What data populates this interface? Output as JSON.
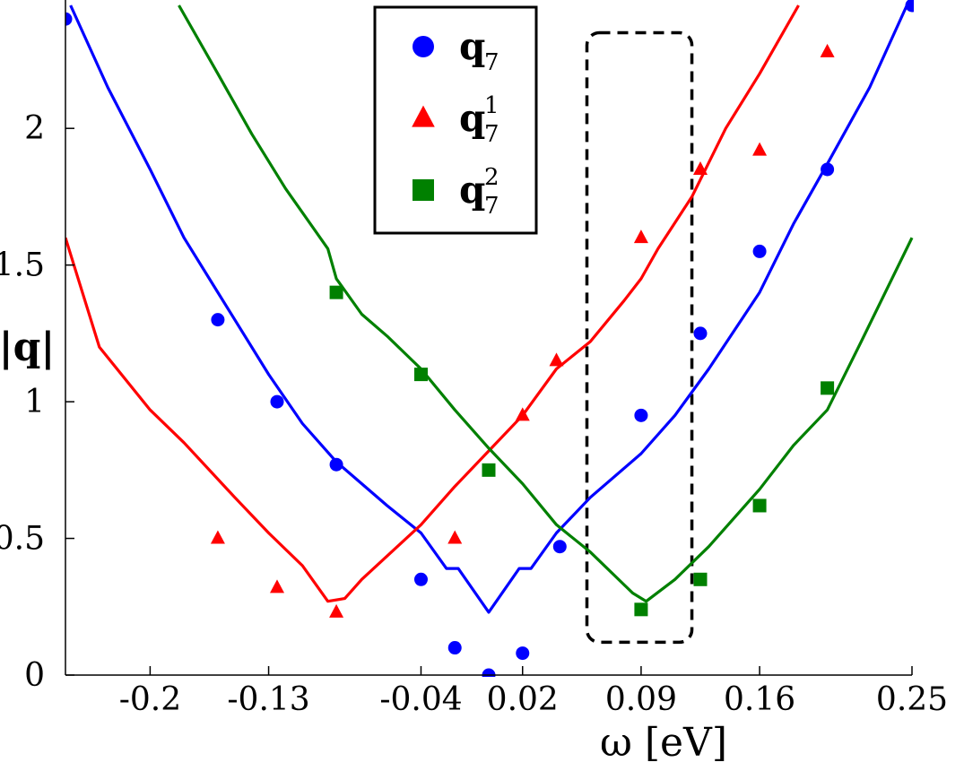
{
  "chart_data": {
    "type": "line",
    "xlabel": "ω [eV]",
    "ylabel": "|q|",
    "xlim": [
      -0.25,
      0.25
    ],
    "ylim": [
      0,
      2.45
    ],
    "x_ticks": [
      {
        "value": -0.2,
        "label": "-0.2"
      },
      {
        "value": -0.13,
        "label": "-0.13"
      },
      {
        "value": -0.04,
        "label": "-0.04"
      },
      {
        "value": 0.02,
        "label": "0.02"
      },
      {
        "value": 0.09,
        "label": "0.09"
      },
      {
        "value": 0.16,
        "label": "0.16"
      },
      {
        "value": 0.25,
        "label": "0.25"
      }
    ],
    "y_ticks": [
      {
        "value": 0,
        "label": "0"
      },
      {
        "value": 0.5,
        "label": "0.5"
      },
      {
        "value": 1,
        "label": "1"
      },
      {
        "value": 1.5,
        "label": "1.5"
      },
      {
        "value": 2,
        "label": "2"
      }
    ],
    "grid": false,
    "legend_position": "top-center",
    "series": [
      {
        "name": "q",
        "name_sub": "7",
        "name_sup": "",
        "color": "#0000ff",
        "marker": "circle",
        "points": [
          {
            "x": -0.25,
            "y": 2.4
          },
          {
            "x": -0.16,
            "y": 1.3
          },
          {
            "x": -0.125,
            "y": 1.0
          },
          {
            "x": -0.09,
            "y": 0.77
          },
          {
            "x": -0.04,
            "y": 0.35
          },
          {
            "x": -0.02,
            "y": 0.1
          },
          {
            "x": 0.0,
            "y": 0.0
          },
          {
            "x": 0.02,
            "y": 0.08
          },
          {
            "x": 0.042,
            "y": 0.47
          },
          {
            "x": 0.09,
            "y": 0.95
          },
          {
            "x": 0.125,
            "y": 1.25
          },
          {
            "x": 0.16,
            "y": 1.55
          },
          {
            "x": 0.2,
            "y": 1.85
          },
          {
            "x": 0.25,
            "y": 2.45
          }
        ],
        "curve": [
          {
            "x": -0.247,
            "y": 2.45
          },
          {
            "x": -0.225,
            "y": 2.15
          },
          {
            "x": -0.2,
            "y": 1.85
          },
          {
            "x": -0.18,
            "y": 1.6
          },
          {
            "x": -0.16,
            "y": 1.4
          },
          {
            "x": -0.13,
            "y": 1.1
          },
          {
            "x": -0.11,
            "y": 0.92
          },
          {
            "x": -0.09,
            "y": 0.78
          },
          {
            "x": -0.06,
            "y": 0.62
          },
          {
            "x": -0.04,
            "y": 0.52
          },
          {
            "x": -0.025,
            "y": 0.39
          },
          {
            "x": -0.018,
            "y": 0.39
          },
          {
            "x": 0.0,
            "y": 0.23
          },
          {
            "x": 0.018,
            "y": 0.39
          },
          {
            "x": 0.025,
            "y": 0.39
          },
          {
            "x": 0.04,
            "y": 0.52
          },
          {
            "x": 0.06,
            "y": 0.65
          },
          {
            "x": 0.09,
            "y": 0.81
          },
          {
            "x": 0.11,
            "y": 0.95
          },
          {
            "x": 0.13,
            "y": 1.12
          },
          {
            "x": 0.16,
            "y": 1.4
          },
          {
            "x": 0.18,
            "y": 1.65
          },
          {
            "x": 0.2,
            "y": 1.87
          },
          {
            "x": 0.225,
            "y": 2.15
          },
          {
            "x": 0.247,
            "y": 2.45
          }
        ]
      },
      {
        "name": "q",
        "name_sub": "7",
        "name_sup": "1",
        "color": "#ff0000",
        "marker": "triangle",
        "points": [
          {
            "x": -0.16,
            "y": 0.5
          },
          {
            "x": -0.125,
            "y": 0.32
          },
          {
            "x": -0.09,
            "y": 0.23
          },
          {
            "x": -0.02,
            "y": 0.5
          },
          {
            "x": 0.02,
            "y": 0.95
          },
          {
            "x": 0.04,
            "y": 1.15
          },
          {
            "x": 0.09,
            "y": 1.6
          },
          {
            "x": 0.125,
            "y": 1.85
          },
          {
            "x": 0.16,
            "y": 1.92
          },
          {
            "x": 0.2,
            "y": 2.28
          }
        ],
        "curve": [
          {
            "x": -0.25,
            "y": 1.6
          },
          {
            "x": -0.23,
            "y": 1.2
          },
          {
            "x": -0.2,
            "y": 0.97
          },
          {
            "x": -0.18,
            "y": 0.85
          },
          {
            "x": -0.15,
            "y": 0.65
          },
          {
            "x": -0.13,
            "y": 0.52
          },
          {
            "x": -0.11,
            "y": 0.4
          },
          {
            "x": -0.095,
            "y": 0.27
          },
          {
            "x": -0.085,
            "y": 0.28
          },
          {
            "x": -0.075,
            "y": 0.35
          },
          {
            "x": -0.04,
            "y": 0.55
          },
          {
            "x": -0.02,
            "y": 0.69
          },
          {
            "x": 0.0,
            "y": 0.82
          },
          {
            "x": 0.02,
            "y": 0.95
          },
          {
            "x": 0.04,
            "y": 1.12
          },
          {
            "x": 0.06,
            "y": 1.22
          },
          {
            "x": 0.08,
            "y": 1.37
          },
          {
            "x": 0.09,
            "y": 1.45
          },
          {
            "x": 0.1,
            "y": 1.56
          },
          {
            "x": 0.12,
            "y": 1.75
          },
          {
            "x": 0.14,
            "y": 2.0
          },
          {
            "x": 0.16,
            "y": 2.2
          },
          {
            "x": 0.183,
            "y": 2.45
          }
        ]
      },
      {
        "name": "q",
        "name_sub": "7",
        "name_sup": "2",
        "color": "#008000",
        "marker": "square",
        "points": [
          {
            "x": -0.09,
            "y": 1.4
          },
          {
            "x": -0.04,
            "y": 1.1
          },
          {
            "x": 0.0,
            "y": 0.75
          },
          {
            "x": 0.09,
            "y": 0.24
          },
          {
            "x": 0.125,
            "y": 0.35
          },
          {
            "x": 0.16,
            "y": 0.62
          },
          {
            "x": 0.2,
            "y": 1.05
          }
        ],
        "curve": [
          {
            "x": -0.183,
            "y": 2.45
          },
          {
            "x": -0.16,
            "y": 2.2
          },
          {
            "x": -0.14,
            "y": 1.98
          },
          {
            "x": -0.12,
            "y": 1.78
          },
          {
            "x": -0.095,
            "y": 1.56
          },
          {
            "x": -0.09,
            "y": 1.45
          },
          {
            "x": -0.075,
            "y": 1.32
          },
          {
            "x": -0.06,
            "y": 1.24
          },
          {
            "x": -0.04,
            "y": 1.12
          },
          {
            "x": -0.02,
            "y": 0.97
          },
          {
            "x": 0.0,
            "y": 0.83
          },
          {
            "x": 0.02,
            "y": 0.7
          },
          {
            "x": 0.04,
            "y": 0.55
          },
          {
            "x": 0.06,
            "y": 0.45
          },
          {
            "x": 0.085,
            "y": 0.3
          },
          {
            "x": 0.093,
            "y": 0.27
          },
          {
            "x": 0.11,
            "y": 0.35
          },
          {
            "x": 0.13,
            "y": 0.47
          },
          {
            "x": 0.16,
            "y": 0.68
          },
          {
            "x": 0.18,
            "y": 0.84
          },
          {
            "x": 0.2,
            "y": 0.97
          },
          {
            "x": 0.22,
            "y": 1.22
          },
          {
            "x": 0.25,
            "y": 1.6
          }
        ]
      }
    ],
    "annotations": [
      {
        "type": "dashed-rounded-box",
        "x_range": [
          0.058,
          0.12
        ],
        "y_range": [
          0.12,
          2.35
        ],
        "color": "#000000"
      }
    ]
  }
}
